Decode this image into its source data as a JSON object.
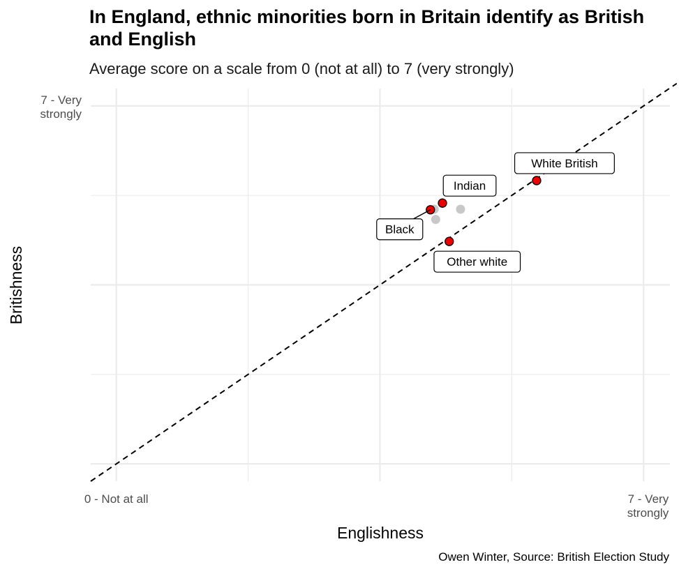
{
  "title": "In England, ethnic minorities born in Britain identify as British and English",
  "subtitle": "Average score on a scale from 0 (not at all) to 7 (very strongly)",
  "caption": "Owen Winter, Source: British Election Study",
  "chart_data": {
    "type": "scatter",
    "title": "In England, ethnic minorities born in Britain identify as British and English",
    "xlabel": "Englishness",
    "ylabel": "Britishness",
    "xlim": [
      -0.34,
      7.35
    ],
    "ylim": [
      -0.34,
      7.34
    ],
    "x_major_ticks": [
      0,
      7
    ],
    "x_tick_labels": [
      "0 - Not at all",
      "7 - Very\nstrongly"
    ],
    "y_major_ticks": [
      7
    ],
    "y_tick_labels": [
      "7 - Very\nstrongly"
    ],
    "gridlines": [
      0,
      1.75,
      3.5,
      5.25,
      7
    ],
    "reference_line": {
      "slope": 1,
      "intercept": 0,
      "style": "dashed"
    },
    "highlight_color": "#ee0000",
    "muted_color": "#c8c8c8",
    "points": [
      {
        "label": "White British",
        "x": 5.58,
        "y": 5.54,
        "highlight": true
      },
      {
        "label": "Indian",
        "x": 4.33,
        "y": 5.1,
        "highlight": true
      },
      {
        "label": "Black",
        "x": 4.17,
        "y": 4.97,
        "highlight": true
      },
      {
        "label": "Other white",
        "x": 4.42,
        "y": 4.35,
        "highlight": true
      },
      {
        "label": "",
        "x": 4.22,
        "y": 4.98,
        "highlight": false
      },
      {
        "label": "",
        "x": 4.24,
        "y": 4.78,
        "highlight": false
      },
      {
        "label": "",
        "x": 4.57,
        "y": 4.98,
        "highlight": false
      }
    ]
  }
}
